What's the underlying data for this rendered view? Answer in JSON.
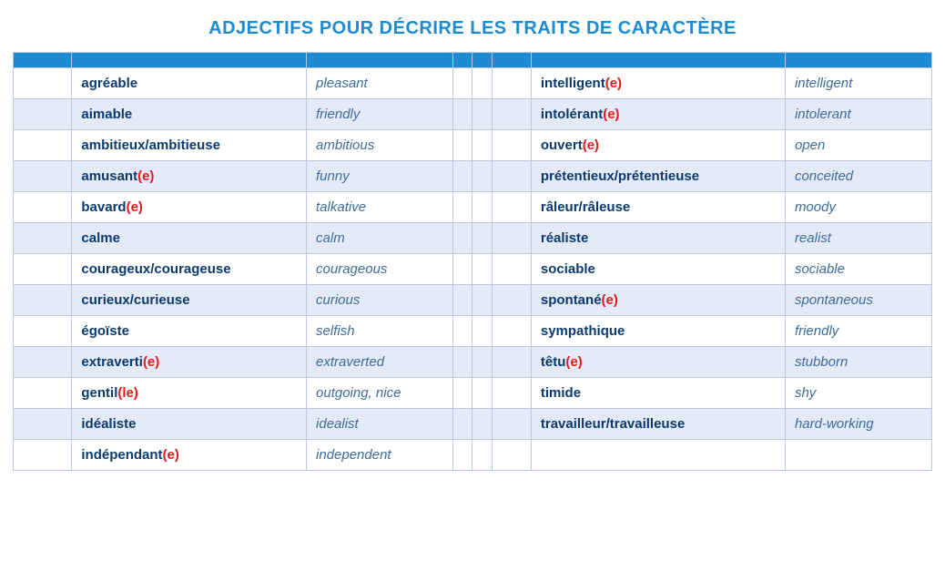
{
  "title": "ADJECTIFS POUR DÉCRIRE LES TRAITS DE CARACTÈRE",
  "colors": {
    "title": "#1d8bd1",
    "header_bg": "#1d8bd1",
    "border": "#b9c8de",
    "row_alt_bg": "#e4eaf8",
    "row_plain_bg": "#ffffff",
    "french_text": "#0b3a6f",
    "english_text": "#3d6c98",
    "feminine_marker": "#e11b1b"
  },
  "typography": {
    "title_fontsize_pt": 15,
    "cell_fontsize_pt": 11,
    "french_weight": "800",
    "english_style": "italic"
  },
  "layout": {
    "type": "table",
    "columns_left": [
      "spacer",
      "french",
      "english"
    ],
    "columns_right": [
      "spacer",
      "french",
      "english"
    ],
    "gap_columns_between": 2,
    "zebra_striping": true,
    "stripe_start": "plain"
  },
  "rows": [
    {
      "l_fr": "agréable",
      "l_fem": "",
      "l_en": "pleasant",
      "r_fr": "intelligent",
      "r_fem": "(e)",
      "r_en": "intelligent"
    },
    {
      "l_fr": "aimable",
      "l_fem": "",
      "l_en": "friendly",
      "r_fr": "intolérant",
      "r_fem": "(e)",
      "r_en": "intolerant"
    },
    {
      "l_fr": "ambitieux/ambitieuse",
      "l_fem": "",
      "l_en": "ambitious",
      "r_fr": "ouvert",
      "r_fem": "(e)",
      "r_en": "open"
    },
    {
      "l_fr": "amusant",
      "l_fem": "(e)",
      "l_en": "funny",
      "r_fr": "prétentieux/prétentieuse",
      "r_fem": "",
      "r_en": "conceited"
    },
    {
      "l_fr": "bavard",
      "l_fem": "(e)",
      "l_en": "talkative",
      "r_fr": "râleur/râleuse",
      "r_fem": "",
      "r_en": "moody"
    },
    {
      "l_fr": "calme",
      "l_fem": "",
      "l_en": "calm",
      "r_fr": "réaliste",
      "r_fem": "",
      "r_en": "realist"
    },
    {
      "l_fr": "courageux/courageuse",
      "l_fem": "",
      "l_en": "courageous",
      "r_fr": "sociable",
      "r_fem": "",
      "r_en": "sociable"
    },
    {
      "l_fr": "curieux/curieuse",
      "l_fem": "",
      "l_en": "curious",
      "r_fr": "spontané",
      "r_fem": "(e)",
      "r_en": "spontaneous"
    },
    {
      "l_fr": "égoïste",
      "l_fem": "",
      "l_en": "selfish",
      "r_fr": "sympathique",
      "r_fem": "",
      "r_en": "friendly"
    },
    {
      "l_fr": "extraverti",
      "l_fem": "(e)",
      "l_en": "extraverted",
      "r_fr": "têtu",
      "r_fem": "(e)",
      "r_en": "stubborn"
    },
    {
      "l_fr": "gentil",
      "l_fem": "(le)",
      "l_en": "outgoing, nice",
      "r_fr": "timide",
      "r_fem": "",
      "r_en": "shy"
    },
    {
      "l_fr": "idéaliste",
      "l_fem": "",
      "l_en": "idealist",
      "r_fr": "travailleur/travailleuse",
      "r_fem": "",
      "r_en": "hard-working"
    },
    {
      "l_fr": "indépendant",
      "l_fem": "(e)",
      "l_en": "independent",
      "r_fr": "",
      "r_fem": "",
      "r_en": ""
    }
  ]
}
